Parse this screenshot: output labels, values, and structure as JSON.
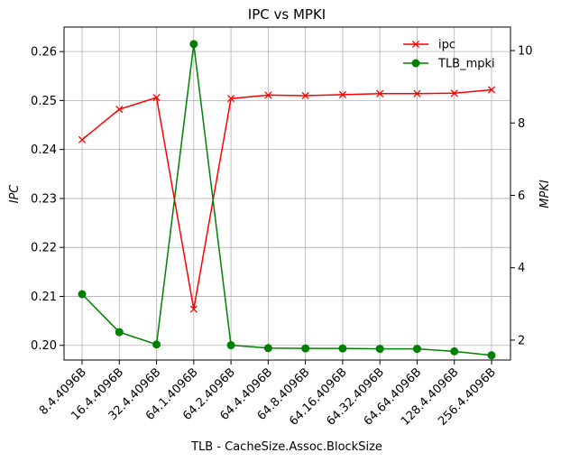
{
  "chart_data": {
    "type": "line",
    "title": "IPC vs MPKI",
    "xlabel": "TLB - CacheSize.Assoc.BlockSize",
    "ylabel": "IPC",
    "ylabel_right": "MPKI",
    "categories": [
      "8.4.4096B",
      "16.4.4096B",
      "32.4.4096B",
      "64.1.4096B",
      "64.2.4096B",
      "64.4.4096B",
      "64.8.4096B",
      "64.16.4096B",
      "64.32.4096B",
      "64.64.4096B",
      "128.4.4096B",
      "256.4.4096B"
    ],
    "ylim": [
      0.197,
      0.265
    ],
    "ylim_right": [
      1.45,
      10.65
    ],
    "yticks": [
      0.2,
      0.21,
      0.22,
      0.23,
      0.24,
      0.25,
      0.26
    ],
    "yticks_right": [
      2,
      4,
      6,
      8,
      10
    ],
    "grid": true,
    "legend_position": "top-right",
    "series": [
      {
        "name": "ipc",
        "axis": "left",
        "color": "#ff0000",
        "marker": "x",
        "values": [
          0.242,
          0.2482,
          0.2506,
          0.2074,
          0.2504,
          0.2511,
          0.251,
          0.2512,
          0.2514,
          0.2514,
          0.2515,
          0.2522
        ]
      },
      {
        "name": "TLB_mpki",
        "axis": "right",
        "color": "#008000",
        "marker": "circle",
        "values": [
          3.27,
          2.22,
          1.88,
          10.18,
          1.86,
          1.78,
          1.77,
          1.77,
          1.76,
          1.76,
          1.69,
          1.58
        ]
      }
    ]
  }
}
